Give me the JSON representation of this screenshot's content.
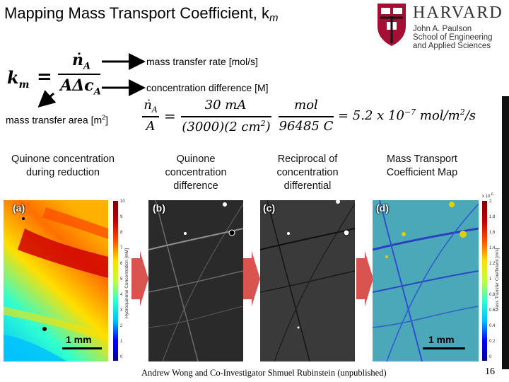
{
  "slide": {
    "title": "Mapping Mass Transport Coefficient, k",
    "title_subscript": "m",
    "page_number": "16",
    "credit": "Andrew Wong and Co-Investigator Shmuel Rubinstein (unpublished)"
  },
  "logo": {
    "name": "HARVARD",
    "lines": [
      "John A. Paulson",
      "School of Engineering",
      "and Applied Sciences"
    ],
    "shield_color": "#a41034"
  },
  "equation": {
    "lhs": "k",
    "lhs_sub": "m",
    "numerator": "ṅ",
    "numerator_sub": "A",
    "denominator": "AΔc",
    "denominator_sub": "A",
    "annot_rate": "mass transfer rate [mol/s]",
    "annot_conc": "concentration difference [M]",
    "annot_area": "mass transfer area [m",
    "annot_area_sup": "2",
    "annot_area_end": "]"
  },
  "calculation": {
    "lhs_num": "ṅ",
    "lhs_num_sub": "A",
    "lhs_den": "A",
    "frac1_num": "30 mA",
    "frac1_den": "(3000)(2 cm",
    "frac1_den_sup": "2",
    "frac1_den_end": ")",
    "frac2_num": "mol",
    "frac2_den": "96485 C",
    "result": "= 5.2 x 10",
    "result_exp": "−7",
    "result_units": " mol/m",
    "result_units_sup": "2",
    "result_units_end": "/s"
  },
  "columns": [
    {
      "heading": "Quinone concentration during reduction",
      "letter": "(a)"
    },
    {
      "heading": "Quinone concentration difference",
      "letter": "(b)"
    },
    {
      "heading": "Reciprocal of concentration differential",
      "letter": "(c)"
    },
    {
      "heading": "Mass Transport Coefficient Map",
      "letter": "(d)"
    }
  ],
  "scale_bars": [
    "1 mm",
    "1 mm"
  ],
  "colorbar_a": {
    "ticks": [
      "10",
      "9",
      "8",
      "7",
      "6",
      "5",
      "4",
      "3",
      "2",
      "1",
      "0"
    ],
    "title": "Hydroquinone Concentration [mM]"
  },
  "colorbar_d": {
    "multiplier": "x 10",
    "multiplier_exp": "-6",
    "ticks": [
      "2",
      "1.8",
      "1.6",
      "1.4",
      "1.2",
      "1",
      "0.8",
      "0.6",
      "0.4",
      "0.2",
      "0"
    ],
    "title": "Mass Transfer Coefficient [m/s]"
  },
  "colors": {
    "arrow_red": "#d9534f",
    "jet_colormap": [
      "#00008f",
      "#0000ff",
      "#00bfff",
      "#30ffcf",
      "#bfff40",
      "#ffdf00",
      "#ff5000",
      "#bf0000",
      "#800000"
    ]
  }
}
